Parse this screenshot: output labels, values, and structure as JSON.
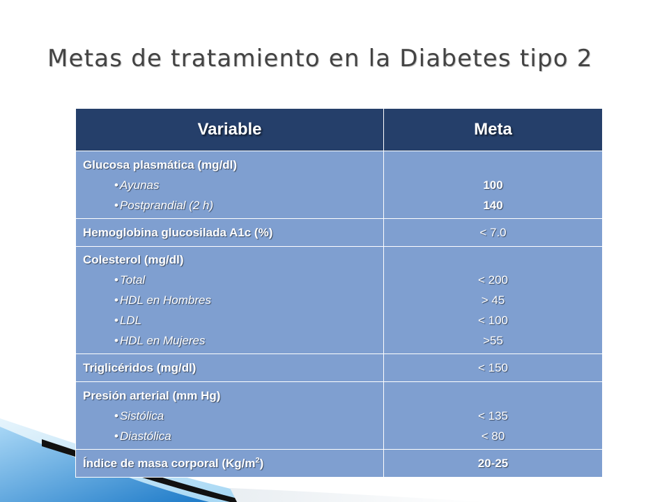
{
  "title": "Metas de tratamiento en la Diabetes tipo 2",
  "table": {
    "headers": {
      "variable": "Variable",
      "meta": "Meta"
    },
    "rows": [
      {
        "label": "Glucosa plasmática (mg/dl)",
        "subs": [
          "Ayunas",
          "Postprandial (2 h)"
        ],
        "values": [
          "100",
          "140"
        ]
      },
      {
        "label": "Hemoglobina glucosilada A1c (%)",
        "values": [
          "< 7.0"
        ]
      },
      {
        "label": "Colesterol (mg/dl)",
        "subs": [
          "Total",
          "HDL en Hombres",
          "LDL",
          "HDL en Mujeres"
        ],
        "values": [
          "< 200",
          "> 45",
          "< 100",
          ">55"
        ]
      },
      {
        "label": "Triglicéridos (mg/dl)",
        "values": [
          "< 150"
        ]
      },
      {
        "label": "Presión arterial (mm Hg)",
        "subs": [
          "Sistólica",
          "Diastólica"
        ],
        "values": [
          "< 135",
          "< 80"
        ]
      },
      {
        "label": "Índice de masa corporal (Kg/m",
        "label_sup": "2",
        "label_suffix": ")",
        "values": [
          "20-25"
        ]
      }
    ]
  },
  "bullet_char": "•",
  "colors": {
    "header_bg": "#253f6a",
    "cell_bg": "#7f9fd0",
    "title_text": "#434343",
    "accent_top": "#3c98e6",
    "accent_bottom": "#0f5fa8"
  }
}
